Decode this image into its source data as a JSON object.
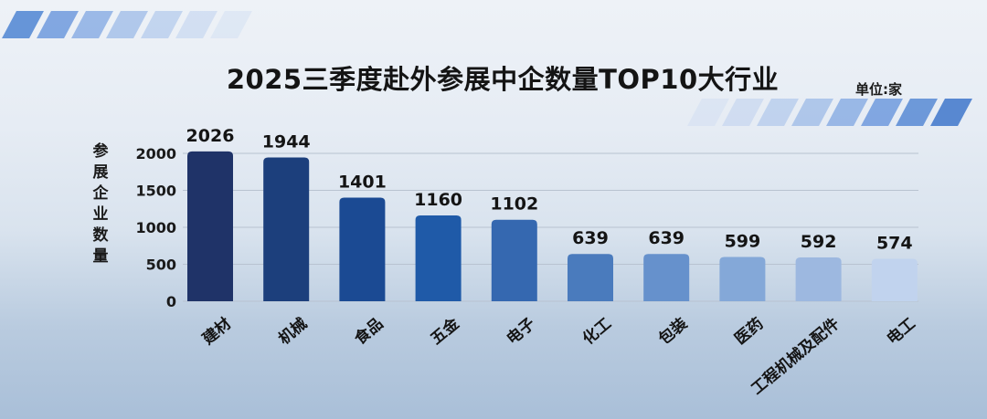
{
  "chart_data": {
    "type": "bar",
    "title": "2025三季度赴外参展中企数量TOP10大行业",
    "unit": "单位:家",
    "ylabel": "参展企业数量",
    "xlabel": "",
    "categories": [
      "建材",
      "机械",
      "食品",
      "五金",
      "电子",
      "化工",
      "包装",
      "医药",
      "工程机械及配件",
      "电工"
    ],
    "values": [
      2026,
      1944,
      1401,
      1160,
      1102,
      639,
      639,
      599,
      592,
      574
    ],
    "yticks": [
      0,
      500,
      1000,
      1500,
      2000
    ],
    "ylim": [
      0,
      2000
    ],
    "grid": true,
    "legend": "none",
    "bar_colors": [
      "#1f3368",
      "#1c3f7c",
      "#1b4a93",
      "#1f5aa8",
      "#3568b0",
      "#4a7bbd",
      "#6691cc",
      "#84a8d8",
      "#9db8e0",
      "#c1d3ee"
    ]
  }
}
